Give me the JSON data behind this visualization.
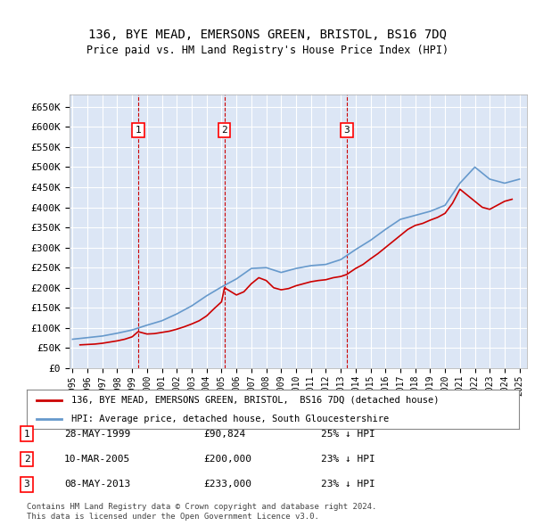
{
  "title": "136, BYE MEAD, EMERSONS GREEN, BRISTOL, BS16 7DQ",
  "subtitle": "Price paid vs. HM Land Registry's House Price Index (HPI)",
  "background_color": "#dce6f5",
  "plot_bg_color": "#dce6f5",
  "legend_line1": "136, BYE MEAD, EMERSONS GREEN, BRISTOL,  BS16 7DQ (detached house)",
  "legend_line2": "HPI: Average price, detached house, South Gloucestershire",
  "footer_line1": "Contains HM Land Registry data © Crown copyright and database right 2024.",
  "footer_line2": "This data is licensed under the Open Government Licence v3.0.",
  "transactions": [
    {
      "num": 1,
      "date": "28-MAY-1999",
      "price": "90,824",
      "pct": "25% ↓ HPI",
      "year": 1999.4
    },
    {
      "num": 2,
      "date": "10-MAR-2005",
      "price": "200,000",
      "pct": "23% ↓ HPI",
      "year": 2005.2
    },
    {
      "num": 3,
      "date": "08-MAY-2013",
      "price": "233,000",
      "pct": "23% ↓ HPI",
      "year": 2013.4
    }
  ],
  "hpi_years": [
    1995,
    1996,
    1997,
    1998,
    1999,
    2000,
    2001,
    2002,
    2003,
    2004,
    2005,
    2006,
    2007,
    2008,
    2009,
    2010,
    2011,
    2012,
    2013,
    2014,
    2015,
    2016,
    2017,
    2018,
    2019,
    2020,
    2021,
    2022,
    2023,
    2024,
    2025
  ],
  "hpi_values": [
    72000,
    76000,
    80000,
    87000,
    95000,
    107000,
    118000,
    135000,
    155000,
    180000,
    202000,
    222000,
    248000,
    250000,
    238000,
    248000,
    255000,
    258000,
    270000,
    295000,
    318000,
    345000,
    370000,
    380000,
    390000,
    405000,
    460000,
    500000,
    470000,
    460000,
    470000
  ],
  "price_years": [
    1995.5,
    1996,
    1996.5,
    1997,
    1997.5,
    1998,
    1998.5,
    1999,
    1999.4,
    2000,
    2000.5,
    2001,
    2001.5,
    2002,
    2002.5,
    2003,
    2003.5,
    2004,
    2004.5,
    2005,
    2005.2,
    2006,
    2006.5,
    2007,
    2007.5,
    2008,
    2008.5,
    2009,
    2009.5,
    2010,
    2010.5,
    2011,
    2011.5,
    2012,
    2012.5,
    2013,
    2013.4,
    2014,
    2014.5,
    2015,
    2015.5,
    2016,
    2016.5,
    2017,
    2017.5,
    2018,
    2018.5,
    2019,
    2019.5,
    2020,
    2020.5,
    2021,
    2021.5,
    2022,
    2022.5,
    2023,
    2023.5,
    2024,
    2024.5
  ],
  "price_values": [
    58000,
    59000,
    60000,
    62000,
    65000,
    68000,
    72000,
    78000,
    90824,
    85000,
    86000,
    89000,
    92000,
    97000,
    103000,
    110000,
    118000,
    130000,
    148000,
    165000,
    200000,
    182000,
    190000,
    210000,
    225000,
    218000,
    200000,
    195000,
    198000,
    205000,
    210000,
    215000,
    218000,
    220000,
    225000,
    228000,
    233000,
    248000,
    258000,
    272000,
    285000,
    300000,
    315000,
    330000,
    345000,
    355000,
    360000,
    368000,
    375000,
    385000,
    410000,
    445000,
    430000,
    415000,
    400000,
    395000,
    405000,
    415000,
    420000
  ],
  "ylim": [
    0,
    680000
  ],
  "yticks": [
    0,
    50000,
    100000,
    150000,
    200000,
    250000,
    300000,
    350000,
    400000,
    450000,
    500000,
    550000,
    600000,
    650000
  ],
  "xlim_start": 1994.8,
  "xlim_end": 2025.5,
  "red_color": "#cc0000",
  "blue_color": "#6699cc"
}
